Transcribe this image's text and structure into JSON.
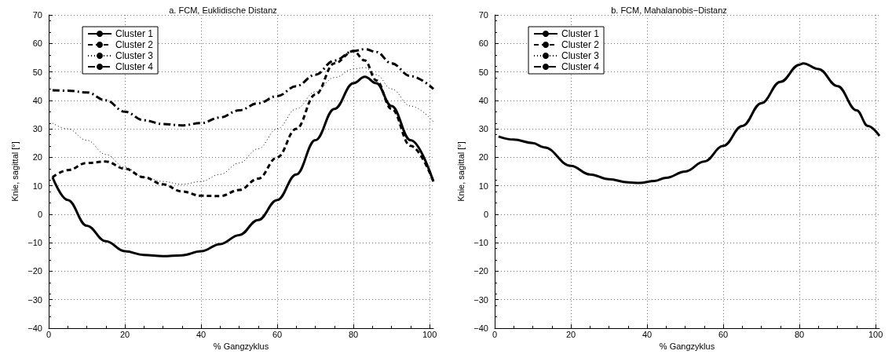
{
  "chart_data": [
    {
      "type": "line",
      "title": "a. FCM, Euklidische Distanz",
      "xlabel": "% Gangzyklus",
      "ylabel": "Knie, sagittal [°]",
      "xlim": [
        0,
        101
      ],
      "xticks": [
        0,
        20,
        40,
        60,
        80,
        100
      ],
      "ylim": [
        -40,
        70
      ],
      "yticks": [
        -40,
        -30,
        -20,
        -10,
        0,
        10,
        20,
        30,
        40,
        50,
        60,
        70
      ],
      "grid": true,
      "legend": "top left",
      "marker": "none",
      "x": [
        1,
        5,
        10,
        15,
        20,
        25,
        30,
        35,
        40,
        45,
        50,
        55,
        60,
        65,
        70,
        75,
        80,
        83,
        86,
        90,
        95,
        101
      ],
      "series": [
        {
          "name": "Cluster 1",
          "color": "#000000",
          "line_style": "solid",
          "values": [
            13,
            5,
            -4,
            -9.5,
            -13,
            -14.3,
            -14.7,
            -14.4,
            -13,
            -10.5,
            -7.3,
            -2,
            5,
            14,
            26,
            37,
            46,
            48.3,
            46,
            38,
            26,
            11.5
          ]
        },
        {
          "name": "Cluster 2",
          "color": "#000000",
          "line_style": "dashed",
          "values": [
            13,
            15.5,
            18,
            18.5,
            16,
            13,
            10.5,
            8,
            6.5,
            6.4,
            8.5,
            12.5,
            20,
            30,
            42,
            53,
            57.3,
            54,
            47,
            37,
            24,
            11.5
          ]
        },
        {
          "name": "Cluster 3",
          "color": "#000000",
          "line_style": "dotted",
          "values": [
            32,
            30,
            26,
            21,
            16.5,
            13,
            11.5,
            10.5,
            11.5,
            14,
            18,
            23,
            30,
            37,
            43,
            48,
            51,
            51.5,
            49,
            44,
            38,
            32.5
          ]
        },
        {
          "name": "Cluster 4",
          "color": "#000000",
          "line_style": "dashdot",
          "values": [
            43.5,
            43.4,
            42.8,
            40,
            36,
            33,
            31.7,
            31.2,
            32,
            34,
            36.5,
            39,
            41.5,
            45,
            49,
            54,
            57.3,
            58,
            57,
            53,
            48.5,
            44
          ]
        }
      ]
    },
    {
      "type": "line",
      "title": "b. FCM, Mahalanobis−Distanz",
      "xlabel": "% Gangzyklus",
      "ylabel": "Knie, sagittal [°]",
      "xlim": [
        0,
        101
      ],
      "xticks": [
        0,
        20,
        40,
        60,
        80,
        100
      ],
      "ylim": [
        -40,
        70
      ],
      "yticks": [
        -40,
        -30,
        -20,
        -10,
        0,
        10,
        20,
        30,
        40,
        50,
        60,
        70
      ],
      "grid": true,
      "legend": "top left",
      "marker": "none",
      "x": [
        1,
        5,
        10,
        13,
        20,
        25,
        30,
        35,
        38,
        42,
        45,
        50,
        55,
        60,
        65,
        70,
        75,
        80,
        81,
        85,
        90,
        95,
        98,
        101
      ],
      "series": [
        {
          "name": "Cluster 1",
          "color": "#000000",
          "line_style": "solid",
          "values": [
            27.3,
            26.2,
            25,
            23.5,
            17,
            14,
            12.3,
            11.2,
            11,
            11.7,
            12.8,
            15,
            18.5,
            24,
            31,
            39,
            46.5,
            52.5,
            53,
            51,
            45,
            36.5,
            31,
            27.5
          ]
        },
        {
          "name": "Cluster 2",
          "color": "#000000",
          "line_style": "dashed",
          "values": [
            null,
            null,
            null,
            null,
            null,
            null,
            null,
            null,
            null,
            null,
            null,
            null,
            null,
            null,
            null,
            null,
            null,
            null,
            null,
            null,
            null,
            null,
            null,
            null
          ]
        },
        {
          "name": "Cluster 3",
          "color": "#000000",
          "line_style": "dotted",
          "values": [
            null,
            null,
            null,
            null,
            null,
            null,
            null,
            null,
            null,
            null,
            null,
            null,
            null,
            null,
            null,
            null,
            null,
            null,
            null,
            null,
            null,
            null,
            null,
            null
          ]
        },
        {
          "name": "Cluster 4",
          "color": "#000000",
          "line_style": "dashdot",
          "values": [
            null,
            null,
            null,
            null,
            null,
            null,
            null,
            null,
            null,
            null,
            null,
            null,
            null,
            null,
            null,
            null,
            null,
            null,
            null,
            null,
            null,
            null,
            null,
            null
          ]
        }
      ]
    }
  ]
}
